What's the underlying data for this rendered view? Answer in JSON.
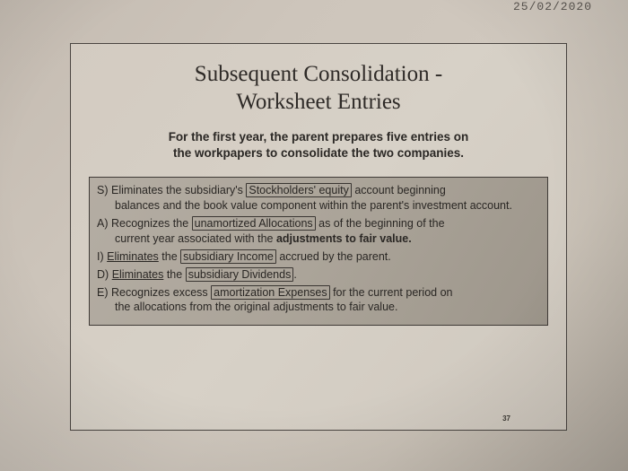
{
  "date_stamp": "25/02/2020",
  "title": {
    "line1": "Subsequent Consolidation -",
    "line2": "Worksheet Entries"
  },
  "subtitle": {
    "line1": "For the first year, the parent prepares five entries on",
    "line2": "the  workpapers to consolidate the two companies."
  },
  "entries": {
    "s": {
      "label": "S)",
      "pre": "Eliminates the subsidiary's ",
      "boxed": "Stockholders' equity",
      "post": " account beginning",
      "cont": "balances and the book value component within the parent's investment account."
    },
    "a": {
      "label": "A)",
      "pre": "Recognizes the ",
      "boxed": "unamortized Allocations",
      "post": " as of the beginning of the",
      "cont_pre": "current year associated with the ",
      "cont_bold": "adjustments to fair value."
    },
    "i": {
      "label": "I)",
      "under": "Eliminates",
      "mid": " the ",
      "boxed": "subsidiary Income",
      "post": " accrued by the parent."
    },
    "d": {
      "label": "D)",
      "under": "Eliminates",
      "mid": " the ",
      "boxed": "subsidiary Dividends",
      "post": "."
    },
    "e": {
      "label": "E)",
      "pre": "Recognizes excess ",
      "boxed": "amortization Expenses",
      "post": " for the current period on",
      "cont": "the allocations from the original adjustments to fair value."
    }
  },
  "page_number": "37",
  "colors": {
    "paper_bg": "#cdc5bb",
    "frame_border": "#4a4541",
    "entries_bg": "#aba499",
    "text": "#2a2724"
  }
}
